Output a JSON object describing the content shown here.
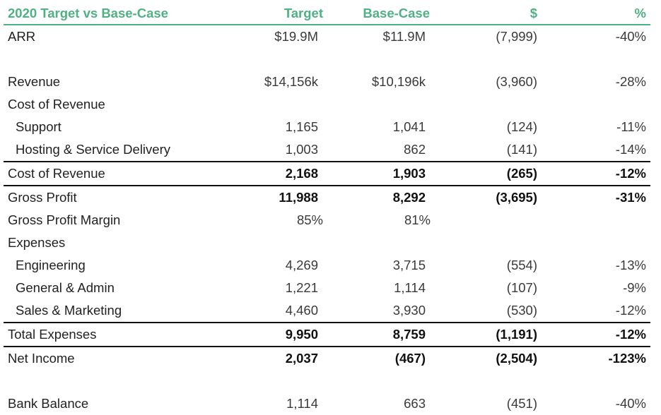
{
  "header": {
    "title": "2020 Target vs Base-Case",
    "col_target": "Target",
    "col_base": "Base-Case",
    "col_dollar": "$",
    "col_pct": "%"
  },
  "rows": {
    "arr": {
      "label": "ARR",
      "target": "$19.9M",
      "base": "$11.9M",
      "dollar": "(7,999)",
      "pct": "-40%"
    },
    "revenue": {
      "label": "Revenue",
      "target": "$14,156k",
      "base": "$10,196k",
      "dollar": "(3,960)",
      "pct": "-28%"
    },
    "cost_of_revenue_heading": {
      "label": "Cost of Revenue"
    },
    "support": {
      "label": "Support",
      "target": "1,165",
      "base": "1,041",
      "dollar": "(124)",
      "pct": "-11%"
    },
    "hosting": {
      "label": "Hosting & Service Delivery",
      "target": "1,003",
      "base": "862",
      "dollar": "(141)",
      "pct": "-14%"
    },
    "cost_of_revenue_total": {
      "label": "Cost of Revenue",
      "target": "2,168",
      "base": "1,903",
      "dollar": "(265)",
      "pct": "-12%"
    },
    "gross_profit": {
      "label": "Gross Profit",
      "target": "11,988",
      "base": "8,292",
      "dollar": "(3,695)",
      "pct": "-31%"
    },
    "gross_profit_margin": {
      "label": "Gross Profit Margin",
      "target": "85%",
      "base": "81%"
    },
    "expenses_heading": {
      "label": "Expenses"
    },
    "engineering": {
      "label": "Engineering",
      "target": "4,269",
      "base": "3,715",
      "dollar": "(554)",
      "pct": "-13%"
    },
    "general_admin": {
      "label": "General & Admin",
      "target": "1,221",
      "base": "1,114",
      "dollar": "(107)",
      "pct": "-9%"
    },
    "sales_marketing": {
      "label": "Sales & Marketing",
      "target": "4,460",
      "base": "3,930",
      "dollar": "(530)",
      "pct": "-12%"
    },
    "total_expenses": {
      "label": "Total Expenses",
      "target": "9,950",
      "base": "8,759",
      "dollar": "(1,191)",
      "pct": "-12%"
    },
    "net_income": {
      "label": "Net Income",
      "target": "2,037",
      "base": "(467)",
      "dollar": "(2,504)",
      "pct": "-123%"
    },
    "bank_balance": {
      "label": "Bank Balance",
      "target": "1,114",
      "base": "663",
      "dollar": "(451)",
      "pct": "-40%"
    }
  },
  "colors": {
    "accent": "#4fb184",
    "rule": "#111111"
  }
}
